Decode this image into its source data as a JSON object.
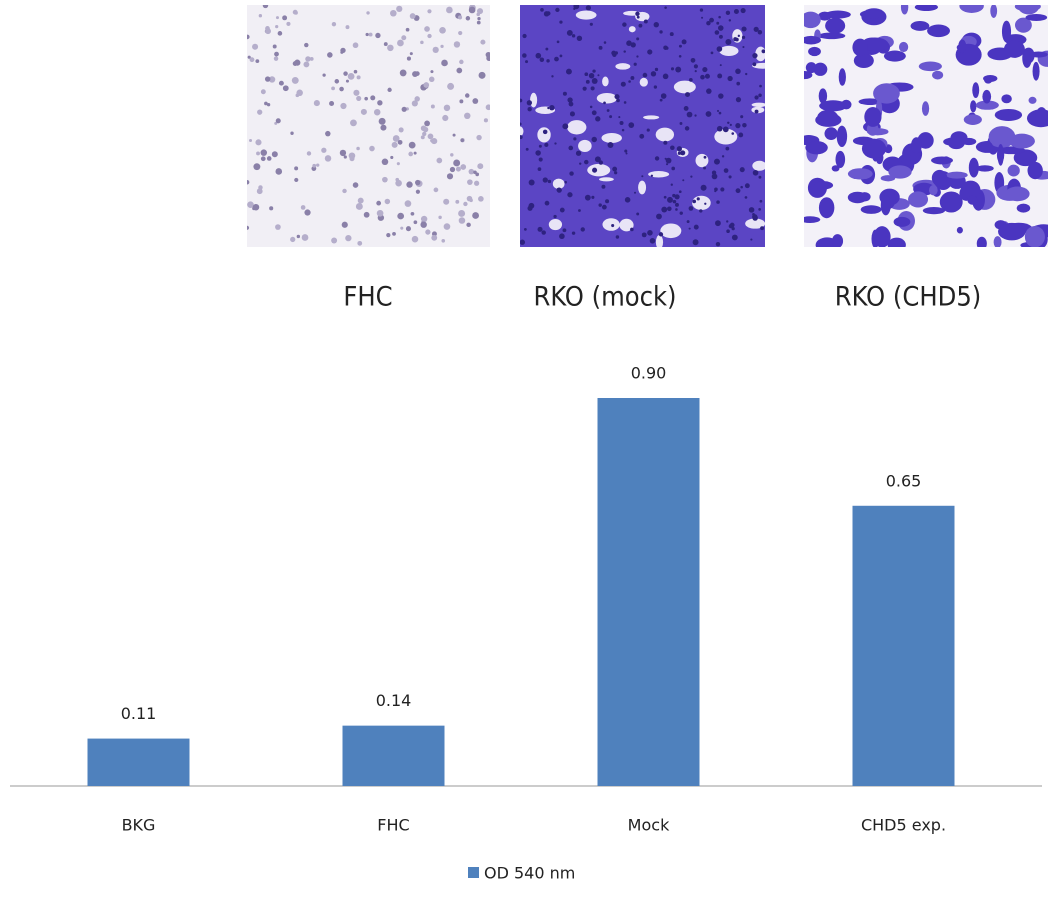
{
  "images": {
    "labels": [
      "FHC",
      "RKO (mock)",
      "RKO (CHD5)"
    ]
  },
  "chart_data": {
    "type": "bar",
    "categories": [
      "BKG",
      "FHC",
      "Mock",
      "CHD5 exp."
    ],
    "series": [
      {
        "name": "OD 540 nm",
        "color": "#4f81bd",
        "values": [
          0.11,
          0.14,
          0.9,
          0.65
        ],
        "value_labels": [
          "0.11",
          "0.14",
          "0.90",
          "0.65"
        ]
      }
    ],
    "legend": "bottom"
  }
}
